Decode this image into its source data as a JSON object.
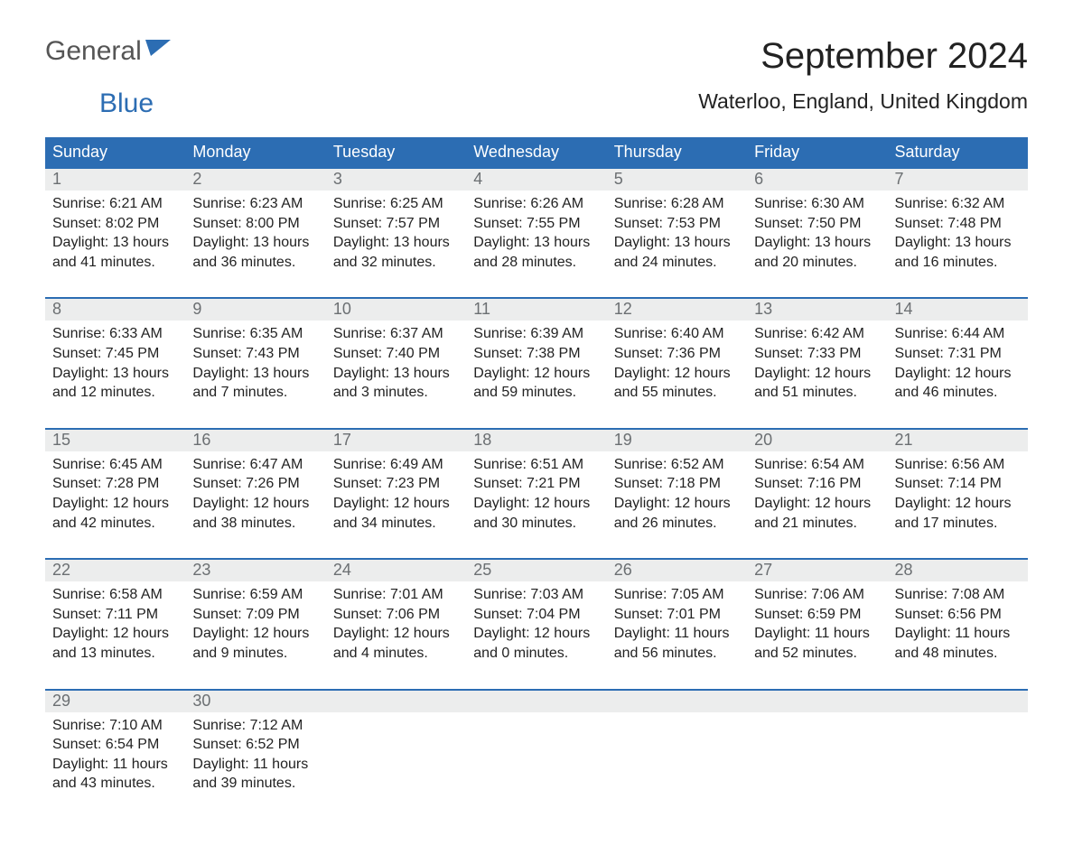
{
  "logo": {
    "text1": "General",
    "text2": "Blue"
  },
  "title": "September 2024",
  "subtitle": "Waterloo, England, United Kingdom",
  "colors": {
    "header_bg": "#2c6db3",
    "header_fg": "#ffffff",
    "daynum_bg": "#eceded",
    "daynum_fg": "#6b6f72",
    "week_border": "#2c6db3",
    "text": "#222222",
    "logo_gray": "#555555",
    "logo_blue": "#2c6db3",
    "page_bg": "#ffffff"
  },
  "fonts": {
    "title_size": 40,
    "subtitle_size": 23,
    "dayheader_size": 18,
    "daynum_size": 18,
    "body_size": 16,
    "logo_size": 30
  },
  "day_headers": [
    "Sunday",
    "Monday",
    "Tuesday",
    "Wednesday",
    "Thursday",
    "Friday",
    "Saturday"
  ],
  "weeks": [
    [
      {
        "num": "1",
        "sunrise": "Sunrise: 6:21 AM",
        "sunset": "Sunset: 8:02 PM",
        "dl1": "Daylight: 13 hours",
        "dl2": "and 41 minutes."
      },
      {
        "num": "2",
        "sunrise": "Sunrise: 6:23 AM",
        "sunset": "Sunset: 8:00 PM",
        "dl1": "Daylight: 13 hours",
        "dl2": "and 36 minutes."
      },
      {
        "num": "3",
        "sunrise": "Sunrise: 6:25 AM",
        "sunset": "Sunset: 7:57 PM",
        "dl1": "Daylight: 13 hours",
        "dl2": "and 32 minutes."
      },
      {
        "num": "4",
        "sunrise": "Sunrise: 6:26 AM",
        "sunset": "Sunset: 7:55 PM",
        "dl1": "Daylight: 13 hours",
        "dl2": "and 28 minutes."
      },
      {
        "num": "5",
        "sunrise": "Sunrise: 6:28 AM",
        "sunset": "Sunset: 7:53 PM",
        "dl1": "Daylight: 13 hours",
        "dl2": "and 24 minutes."
      },
      {
        "num": "6",
        "sunrise": "Sunrise: 6:30 AM",
        "sunset": "Sunset: 7:50 PM",
        "dl1": "Daylight: 13 hours",
        "dl2": "and 20 minutes."
      },
      {
        "num": "7",
        "sunrise": "Sunrise: 6:32 AM",
        "sunset": "Sunset: 7:48 PM",
        "dl1": "Daylight: 13 hours",
        "dl2": "and 16 minutes."
      }
    ],
    [
      {
        "num": "8",
        "sunrise": "Sunrise: 6:33 AM",
        "sunset": "Sunset: 7:45 PM",
        "dl1": "Daylight: 13 hours",
        "dl2": "and 12 minutes."
      },
      {
        "num": "9",
        "sunrise": "Sunrise: 6:35 AM",
        "sunset": "Sunset: 7:43 PM",
        "dl1": "Daylight: 13 hours",
        "dl2": "and 7 minutes."
      },
      {
        "num": "10",
        "sunrise": "Sunrise: 6:37 AM",
        "sunset": "Sunset: 7:40 PM",
        "dl1": "Daylight: 13 hours",
        "dl2": "and 3 minutes."
      },
      {
        "num": "11",
        "sunrise": "Sunrise: 6:39 AM",
        "sunset": "Sunset: 7:38 PM",
        "dl1": "Daylight: 12 hours",
        "dl2": "and 59 minutes."
      },
      {
        "num": "12",
        "sunrise": "Sunrise: 6:40 AM",
        "sunset": "Sunset: 7:36 PM",
        "dl1": "Daylight: 12 hours",
        "dl2": "and 55 minutes."
      },
      {
        "num": "13",
        "sunrise": "Sunrise: 6:42 AM",
        "sunset": "Sunset: 7:33 PM",
        "dl1": "Daylight: 12 hours",
        "dl2": "and 51 minutes."
      },
      {
        "num": "14",
        "sunrise": "Sunrise: 6:44 AM",
        "sunset": "Sunset: 7:31 PM",
        "dl1": "Daylight: 12 hours",
        "dl2": "and 46 minutes."
      }
    ],
    [
      {
        "num": "15",
        "sunrise": "Sunrise: 6:45 AM",
        "sunset": "Sunset: 7:28 PM",
        "dl1": "Daylight: 12 hours",
        "dl2": "and 42 minutes."
      },
      {
        "num": "16",
        "sunrise": "Sunrise: 6:47 AM",
        "sunset": "Sunset: 7:26 PM",
        "dl1": "Daylight: 12 hours",
        "dl2": "and 38 minutes."
      },
      {
        "num": "17",
        "sunrise": "Sunrise: 6:49 AM",
        "sunset": "Sunset: 7:23 PM",
        "dl1": "Daylight: 12 hours",
        "dl2": "and 34 minutes."
      },
      {
        "num": "18",
        "sunrise": "Sunrise: 6:51 AM",
        "sunset": "Sunset: 7:21 PM",
        "dl1": "Daylight: 12 hours",
        "dl2": "and 30 minutes."
      },
      {
        "num": "19",
        "sunrise": "Sunrise: 6:52 AM",
        "sunset": "Sunset: 7:18 PM",
        "dl1": "Daylight: 12 hours",
        "dl2": "and 26 minutes."
      },
      {
        "num": "20",
        "sunrise": "Sunrise: 6:54 AM",
        "sunset": "Sunset: 7:16 PM",
        "dl1": "Daylight: 12 hours",
        "dl2": "and 21 minutes."
      },
      {
        "num": "21",
        "sunrise": "Sunrise: 6:56 AM",
        "sunset": "Sunset: 7:14 PM",
        "dl1": "Daylight: 12 hours",
        "dl2": "and 17 minutes."
      }
    ],
    [
      {
        "num": "22",
        "sunrise": "Sunrise: 6:58 AM",
        "sunset": "Sunset: 7:11 PM",
        "dl1": "Daylight: 12 hours",
        "dl2": "and 13 minutes."
      },
      {
        "num": "23",
        "sunrise": "Sunrise: 6:59 AM",
        "sunset": "Sunset: 7:09 PM",
        "dl1": "Daylight: 12 hours",
        "dl2": "and 9 minutes."
      },
      {
        "num": "24",
        "sunrise": "Sunrise: 7:01 AM",
        "sunset": "Sunset: 7:06 PM",
        "dl1": "Daylight: 12 hours",
        "dl2": "and 4 minutes."
      },
      {
        "num": "25",
        "sunrise": "Sunrise: 7:03 AM",
        "sunset": "Sunset: 7:04 PM",
        "dl1": "Daylight: 12 hours",
        "dl2": "and 0 minutes."
      },
      {
        "num": "26",
        "sunrise": "Sunrise: 7:05 AM",
        "sunset": "Sunset: 7:01 PM",
        "dl1": "Daylight: 11 hours",
        "dl2": "and 56 minutes."
      },
      {
        "num": "27",
        "sunrise": "Sunrise: 7:06 AM",
        "sunset": "Sunset: 6:59 PM",
        "dl1": "Daylight: 11 hours",
        "dl2": "and 52 minutes."
      },
      {
        "num": "28",
        "sunrise": "Sunrise: 7:08 AM",
        "sunset": "Sunset: 6:56 PM",
        "dl1": "Daylight: 11 hours",
        "dl2": "and 48 minutes."
      }
    ],
    [
      {
        "num": "29",
        "sunrise": "Sunrise: 7:10 AM",
        "sunset": "Sunset: 6:54 PM",
        "dl1": "Daylight: 11 hours",
        "dl2": "and 43 minutes."
      },
      {
        "num": "30",
        "sunrise": "Sunrise: 7:12 AM",
        "sunset": "Sunset: 6:52 PM",
        "dl1": "Daylight: 11 hours",
        "dl2": "and 39 minutes."
      },
      {
        "empty": true
      },
      {
        "empty": true
      },
      {
        "empty": true
      },
      {
        "empty": true
      },
      {
        "empty": true
      }
    ]
  ]
}
